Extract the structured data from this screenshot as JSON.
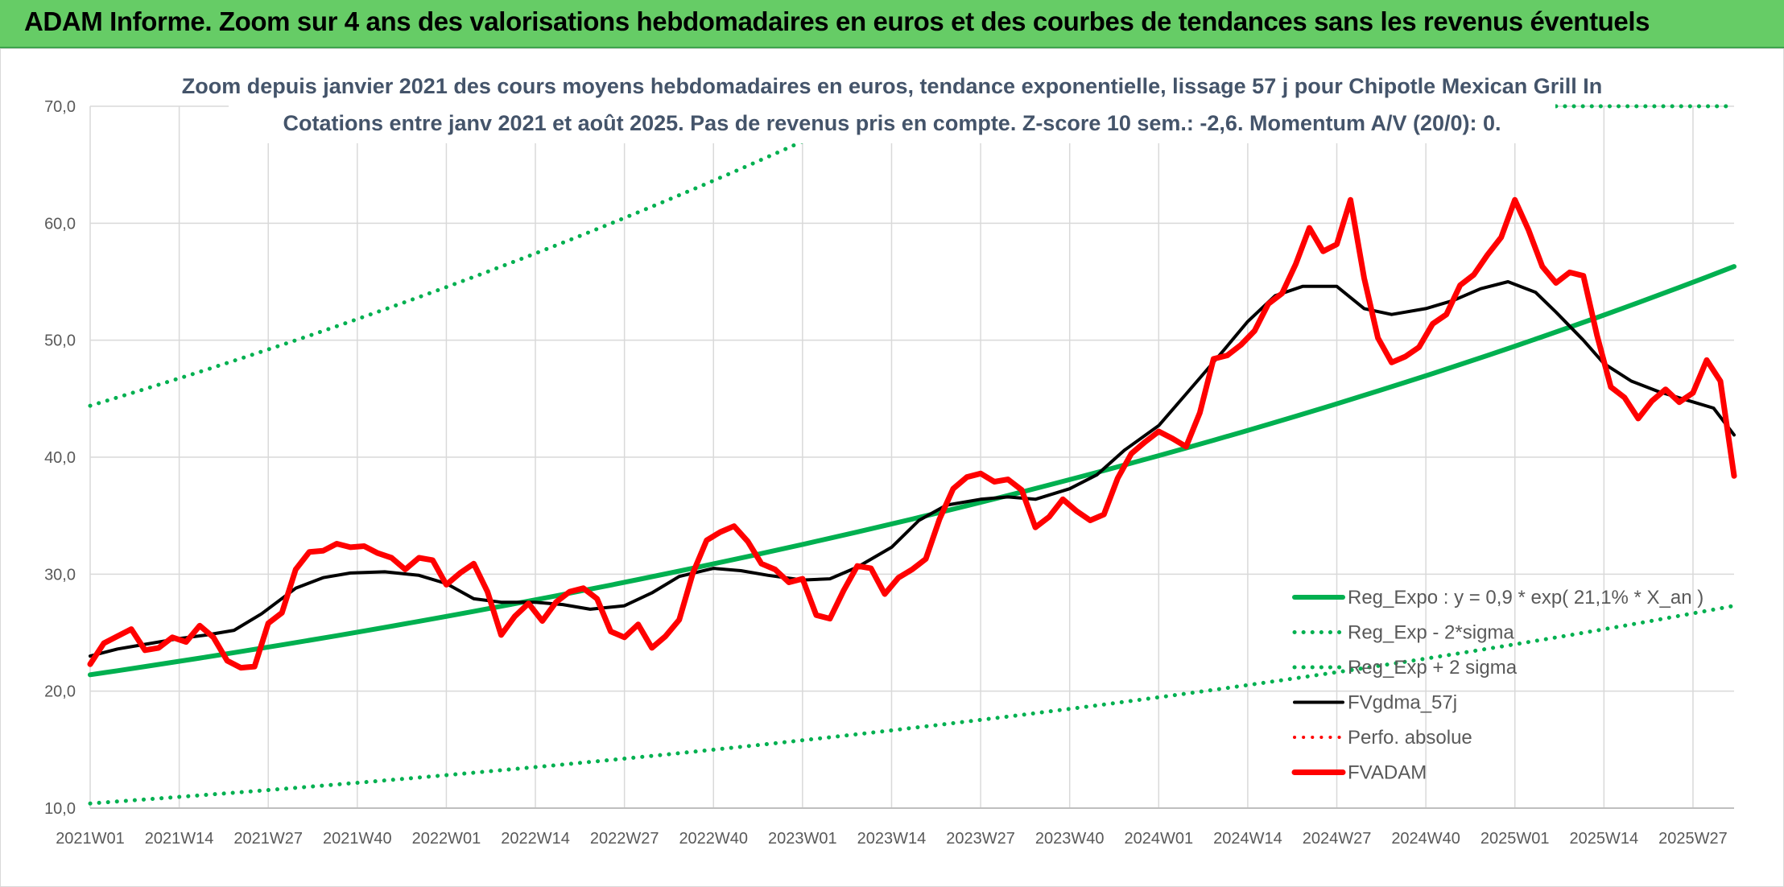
{
  "header": {
    "title": "ADAM Informe. Zoom sur 4 ans des valorisations hebdomadaires en euros et des courbes de tendances sans les revenus éventuels"
  },
  "colors": {
    "banner": "#66cc66",
    "regression": "#00b050",
    "fvadam": "#ff0000",
    "fvgdma": "#000000",
    "grid": "#d9d9d9"
  },
  "chart_data": {
    "type": "line",
    "title_lines": [
      "Zoom depuis janvier 2021 des cours moyens hebdomadaires en euros, tendance exponentielle, lissage 57 j pour Chipotle Mexican Grill In",
      "Cotations entre janv 2021 et août 2025. Pas de revenus pris en compte. Z-score 10 sem.: -2,6. Momentum A/V (20/0): 0."
    ],
    "ylim": [
      10,
      70
    ],
    "yticks": [
      "10,0",
      "20,0",
      "30,0",
      "40,0",
      "50,0",
      "60,0",
      "70,0"
    ],
    "x_index_range": [
      0,
      240
    ],
    "xticks": [
      {
        "label": "2021W01",
        "i": 0
      },
      {
        "label": "2021W14",
        "i": 13
      },
      {
        "label": "2021W27",
        "i": 26
      },
      {
        "label": "2021W40",
        "i": 39
      },
      {
        "label": "2022W01",
        "i": 52
      },
      {
        "label": "2022W14",
        "i": 65
      },
      {
        "label": "2022W27",
        "i": 78
      },
      {
        "label": "2022W40",
        "i": 91
      },
      {
        "label": "2023W01",
        "i": 104
      },
      {
        "label": "2023W14",
        "i": 117
      },
      {
        "label": "2023W27",
        "i": 130
      },
      {
        "label": "2023W40",
        "i": 143
      },
      {
        "label": "2024W01",
        "i": 156
      },
      {
        "label": "2024W14",
        "i": 169
      },
      {
        "label": "2024W27",
        "i": 182
      },
      {
        "label": "2024W40",
        "i": 195
      },
      {
        "label": "2025W01",
        "i": 208
      },
      {
        "label": "2025W14",
        "i": 221
      },
      {
        "label": "2025W27",
        "i": 234
      }
    ],
    "legend": [
      {
        "key": "reg_expo",
        "label": "Reg_Expo : y = 0,9 * exp( 21,1% *  X_an )",
        "style": "solid",
        "color": "#00b050",
        "width": 6
      },
      {
        "key": "reg_minus",
        "label": "Reg_Exp - 2*sigma",
        "style": "dotted",
        "color": "#00b050",
        "width": 5
      },
      {
        "key": "reg_plus",
        "label": "Reg_Exp + 2 sigma",
        "style": "dotted",
        "color": "#00b050",
        "width": 5
      },
      {
        "key": "fvgdma",
        "label": "FVgdma_57j",
        "style": "solid",
        "color": "#000000",
        "width": 4
      },
      {
        "key": "perfo",
        "label": "Perfo. absolue",
        "style": "dotted",
        "color": "#ff0000",
        "width": 4
      },
      {
        "key": "fvadam",
        "label": "FVADAM",
        "style": "solid",
        "color": "#ff0000",
        "width": 7
      }
    ],
    "series": [
      {
        "key": "reg_expo",
        "points": [
          [
            0,
            21.4
          ],
          [
            240,
            56.3
          ]
        ]
      },
      {
        "key": "reg_minus",
        "points": [
          [
            0,
            10.4
          ],
          [
            240,
            27.3
          ]
        ]
      },
      {
        "key": "reg_plus",
        "points": [
          [
            0,
            44.4
          ],
          [
            104,
            67.0
          ]
        ],
        "extra": [
          [
            214,
            70.0
          ],
          [
            240,
            70.0
          ]
        ]
      },
      {
        "key": "fvgdma",
        "points": [
          [
            0,
            23.0
          ],
          [
            4,
            23.6
          ],
          [
            8,
            24.0
          ],
          [
            13,
            24.5
          ],
          [
            17,
            24.8
          ],
          [
            21,
            25.2
          ],
          [
            25,
            26.6
          ],
          [
            30,
            28.8
          ],
          [
            34,
            29.7
          ],
          [
            38,
            30.1
          ],
          [
            43,
            30.2
          ],
          [
            48,
            29.9
          ],
          [
            52,
            29.2
          ],
          [
            56,
            27.9
          ],
          [
            60,
            27.6
          ],
          [
            65,
            27.6
          ],
          [
            69,
            27.4
          ],
          [
            73,
            27.0
          ],
          [
            78,
            27.3
          ],
          [
            82,
            28.4
          ],
          [
            86,
            29.8
          ],
          [
            91,
            30.5
          ],
          [
            95,
            30.3
          ],
          [
            99,
            29.9
          ],
          [
            104,
            29.5
          ],
          [
            108,
            29.6
          ],
          [
            112,
            30.6
          ],
          [
            117,
            32.3
          ],
          [
            121,
            34.6
          ],
          [
            125,
            35.9
          ],
          [
            130,
            36.4
          ],
          [
            134,
            36.6
          ],
          [
            138,
            36.4
          ],
          [
            143,
            37.3
          ],
          [
            147,
            38.5
          ],
          [
            151,
            40.6
          ],
          [
            156,
            42.7
          ],
          [
            160,
            45.4
          ],
          [
            165,
            48.8
          ],
          [
            169,
            51.6
          ],
          [
            173,
            53.8
          ],
          [
            177,
            54.6
          ],
          [
            182,
            54.6
          ],
          [
            186,
            52.7
          ],
          [
            190,
            52.2
          ],
          [
            195,
            52.7
          ],
          [
            199,
            53.4
          ],
          [
            203,
            54.4
          ],
          [
            207,
            55.0
          ],
          [
            211,
            54.1
          ],
          [
            214,
            52.4
          ],
          [
            218,
            50.0
          ],
          [
            221,
            48.0
          ],
          [
            225,
            46.5
          ],
          [
            229,
            45.6
          ],
          [
            233,
            44.9
          ],
          [
            237,
            44.2
          ],
          [
            240,
            41.9
          ]
        ]
      },
      {
        "key": "fvadam",
        "points": [
          [
            0,
            22.3
          ],
          [
            2,
            24.1
          ],
          [
            4,
            24.7
          ],
          [
            6,
            25.3
          ],
          [
            8,
            23.5
          ],
          [
            10,
            23.7
          ],
          [
            12,
            24.6
          ],
          [
            14,
            24.2
          ],
          [
            16,
            25.6
          ],
          [
            18,
            24.6
          ],
          [
            20,
            22.6
          ],
          [
            22,
            22.0
          ],
          [
            24,
            22.1
          ],
          [
            26,
            25.8
          ],
          [
            28,
            26.7
          ],
          [
            30,
            30.4
          ],
          [
            32,
            31.9
          ],
          [
            34,
            32.0
          ],
          [
            36,
            32.6
          ],
          [
            38,
            32.3
          ],
          [
            40,
            32.4
          ],
          [
            42,
            31.8
          ],
          [
            44,
            31.4
          ],
          [
            46,
            30.4
          ],
          [
            48,
            31.4
          ],
          [
            50,
            31.2
          ],
          [
            52,
            29.1
          ],
          [
            54,
            30.1
          ],
          [
            56,
            30.9
          ],
          [
            58,
            28.5
          ],
          [
            60,
            24.8
          ],
          [
            62,
            26.4
          ],
          [
            64,
            27.5
          ],
          [
            66,
            26.0
          ],
          [
            68,
            27.6
          ],
          [
            70,
            28.5
          ],
          [
            72,
            28.8
          ],
          [
            74,
            27.9
          ],
          [
            76,
            25.1
          ],
          [
            78,
            24.6
          ],
          [
            80,
            25.7
          ],
          [
            82,
            23.7
          ],
          [
            84,
            24.7
          ],
          [
            86,
            26.1
          ],
          [
            88,
            30.1
          ],
          [
            90,
            32.9
          ],
          [
            92,
            33.6
          ],
          [
            94,
            34.1
          ],
          [
            96,
            32.8
          ],
          [
            98,
            30.9
          ],
          [
            100,
            30.4
          ],
          [
            102,
            29.3
          ],
          [
            104,
            29.6
          ],
          [
            106,
            26.5
          ],
          [
            108,
            26.2
          ],
          [
            110,
            28.6
          ],
          [
            112,
            30.7
          ],
          [
            114,
            30.5
          ],
          [
            116,
            28.3
          ],
          [
            118,
            29.7
          ],
          [
            120,
            30.4
          ],
          [
            122,
            31.3
          ],
          [
            124,
            34.7
          ],
          [
            126,
            37.3
          ],
          [
            128,
            38.3
          ],
          [
            130,
            38.6
          ],
          [
            132,
            37.9
          ],
          [
            134,
            38.1
          ],
          [
            136,
            37.2
          ],
          [
            138,
            34.0
          ],
          [
            140,
            34.9
          ],
          [
            142,
            36.4
          ],
          [
            144,
            35.4
          ],
          [
            146,
            34.6
          ],
          [
            148,
            35.1
          ],
          [
            150,
            38.2
          ],
          [
            152,
            40.3
          ],
          [
            154,
            41.3
          ],
          [
            156,
            42.2
          ],
          [
            158,
            41.6
          ],
          [
            160,
            40.9
          ],
          [
            162,
            43.8
          ],
          [
            164,
            48.4
          ],
          [
            166,
            48.7
          ],
          [
            168,
            49.6
          ],
          [
            170,
            50.8
          ],
          [
            172,
            53.1
          ],
          [
            174,
            54.0
          ],
          [
            176,
            56.5
          ],
          [
            178,
            59.6
          ],
          [
            180,
            57.6
          ],
          [
            182,
            58.2
          ],
          [
            184,
            62.0
          ],
          [
            186,
            55.3
          ],
          [
            188,
            50.2
          ],
          [
            190,
            48.1
          ],
          [
            192,
            48.6
          ],
          [
            194,
            49.4
          ],
          [
            196,
            51.4
          ],
          [
            198,
            52.2
          ],
          [
            200,
            54.7
          ],
          [
            202,
            55.6
          ],
          [
            204,
            57.3
          ],
          [
            206,
            58.8
          ],
          [
            208,
            62.0
          ],
          [
            210,
            59.4
          ],
          [
            212,
            56.3
          ],
          [
            214,
            54.9
          ],
          [
            216,
            55.8
          ],
          [
            218,
            55.5
          ],
          [
            220,
            50.4
          ],
          [
            222,
            46.0
          ],
          [
            224,
            45.1
          ],
          [
            226,
            43.3
          ],
          [
            228,
            44.8
          ],
          [
            230,
            45.8
          ],
          [
            232,
            44.7
          ],
          [
            234,
            45.5
          ],
          [
            236,
            48.3
          ],
          [
            238,
            46.5
          ],
          [
            240,
            38.4
          ]
        ]
      }
    ]
  }
}
